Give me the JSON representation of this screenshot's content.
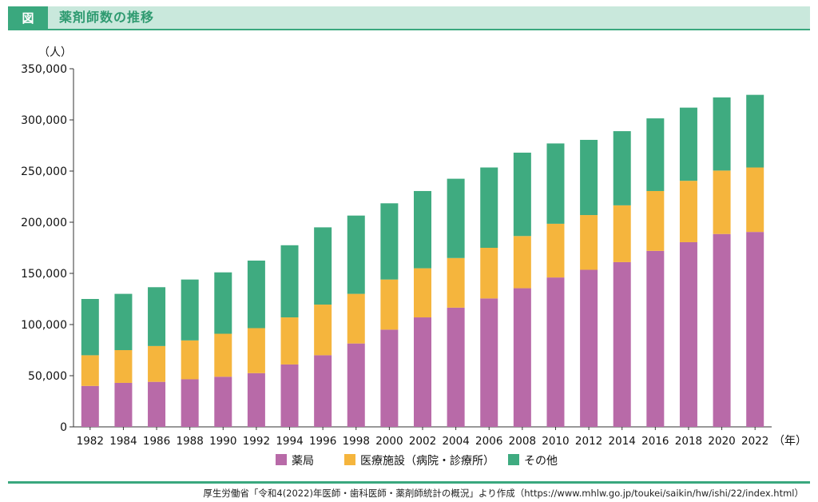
{
  "header": {
    "badge": "図",
    "title": "薬剤師数の推移"
  },
  "source": "厚生労働省「令和4(2022)年医師・歯科医師・薬剤師統計の概況」より作成（https://www.mhlw.go.jp/toukei/saikin/hw/ishi/22/index.html）",
  "chart_data": {
    "type": "bar",
    "stacked": true,
    "categories": [
      "1982",
      "1984",
      "1986",
      "1988",
      "1990",
      "1992",
      "1994",
      "1996",
      "1998",
      "2000",
      "2002",
      "2004",
      "2006",
      "2008",
      "2010",
      "2012",
      "2014",
      "2016",
      "2018",
      "2020",
      "2022"
    ],
    "series": [
      {
        "name": "薬局",
        "color": "#b86aa8",
        "values": [
          40000,
          43000,
          44000,
          46500,
          49000,
          52500,
          61000,
          70000,
          81500,
          95000,
          107000,
          116500,
          125500,
          135500,
          146000,
          153500,
          161000,
          172000,
          180500,
          188500,
          190500
        ]
      },
      {
        "name": "医療施設（病院・診療所）",
        "color": "#f5b53d",
        "values": [
          30000,
          32000,
          35000,
          38000,
          42000,
          44000,
          46000,
          49500,
          48500,
          49000,
          48000,
          48500,
          49500,
          51000,
          52500,
          53500,
          55500,
          58500,
          60000,
          62000,
          63000
        ]
      },
      {
        "name": "その他",
        "color": "#3fab80",
        "values": [
          55000,
          55000,
          57500,
          59500,
          60000,
          66000,
          70500,
          75500,
          76500,
          74500,
          75500,
          77500,
          78500,
          81500,
          78500,
          73500,
          72500,
          71000,
          71500,
          71500,
          71000
        ]
      }
    ],
    "ylim": [
      0,
      350000
    ],
    "yticks": [
      "0",
      "50,000",
      "100,000",
      "150,000",
      "200,000",
      "250,000",
      "300,000",
      "350,000"
    ],
    "ytick_values": [
      0,
      50000,
      100000,
      150000,
      200000,
      250000,
      300000,
      350000
    ],
    "yunit": "（人）",
    "xunit": "（年）",
    "legend_position": "bottom-center",
    "grid": false
  }
}
